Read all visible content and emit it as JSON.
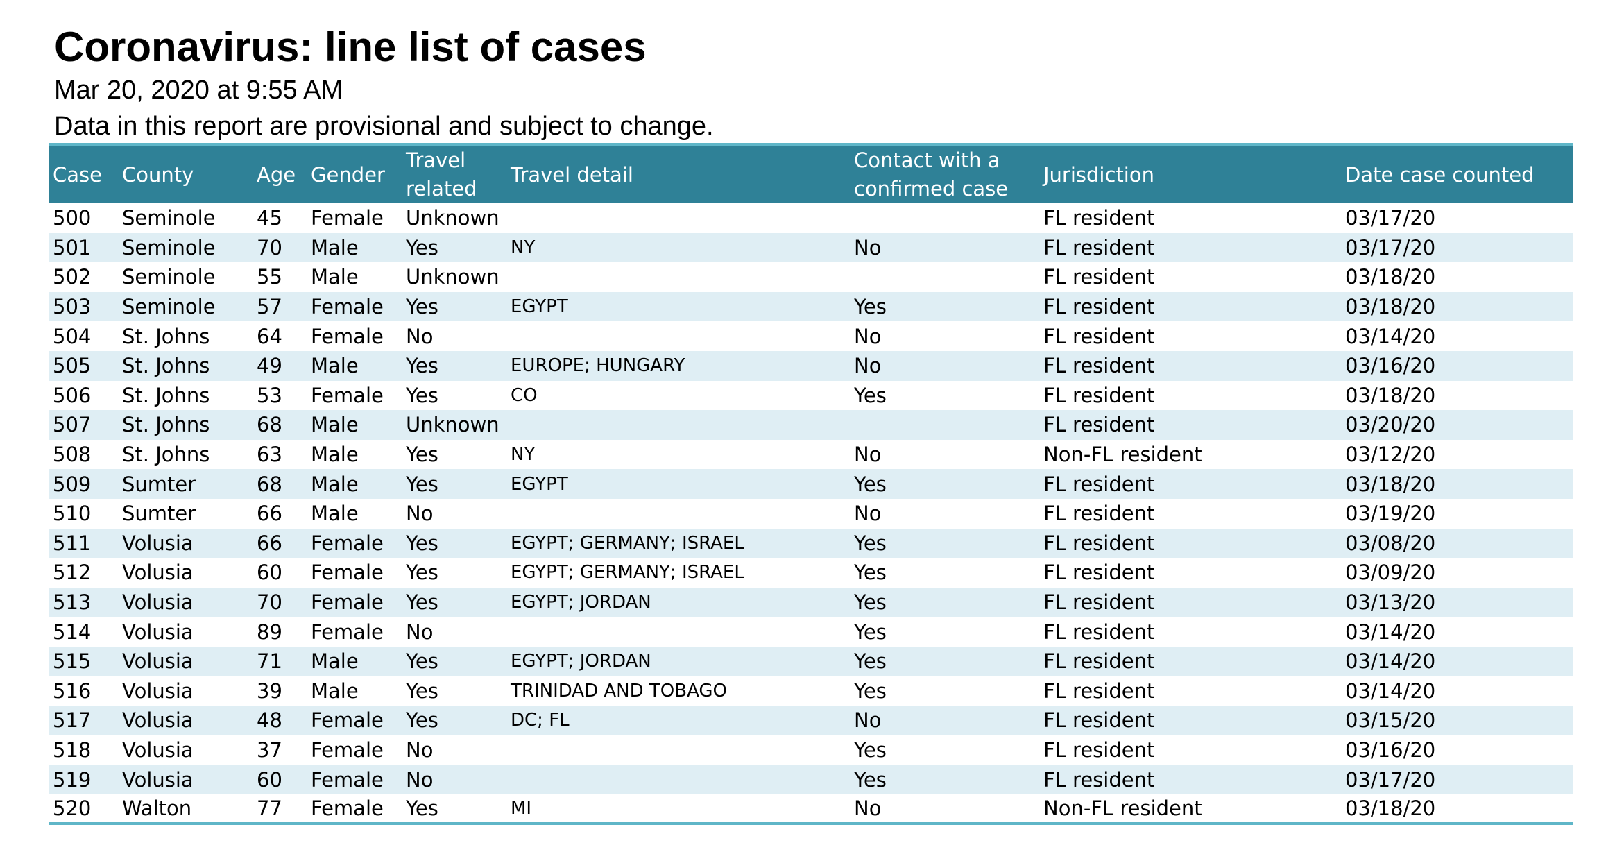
{
  "title": "Coronavirus: line list of cases",
  "timestamp": "Mar 20, 2020 at 9:55 AM",
  "disclaimer": "Data in this report are provisional and subject to change.",
  "table": {
    "headers": {
      "case": "Case",
      "county": "County",
      "age": "Age",
      "gender": "Gender",
      "travel_related_1": "Travel",
      "travel_related_2": "related",
      "travel_detail": "Travel detail",
      "contact_1": "Contact with a",
      "contact_2": "confirmed case",
      "jurisdiction": "Jurisdiction",
      "date_counted": "Date case counted"
    },
    "rows": [
      {
        "case": "500",
        "county": "Seminole",
        "age": "45",
        "gender": "Female",
        "travel_related": "Unknown",
        "travel_detail": "",
        "contact": "",
        "jurisdiction": "FL resident",
        "date": "03/17/20"
      },
      {
        "case": "501",
        "county": "Seminole",
        "age": "70",
        "gender": "Male",
        "travel_related": "Yes",
        "travel_detail": "NY",
        "contact": "No",
        "jurisdiction": "FL resident",
        "date": "03/17/20"
      },
      {
        "case": "502",
        "county": "Seminole",
        "age": "55",
        "gender": "Male",
        "travel_related": "Unknown",
        "travel_detail": "",
        "contact": "",
        "jurisdiction": "FL resident",
        "date": "03/18/20"
      },
      {
        "case": "503",
        "county": "Seminole",
        "age": "57",
        "gender": "Female",
        "travel_related": "Yes",
        "travel_detail": "EGYPT",
        "contact": "Yes",
        "jurisdiction": "FL resident",
        "date": "03/18/20"
      },
      {
        "case": "504",
        "county": "St. Johns",
        "age": "64",
        "gender": "Female",
        "travel_related": "No",
        "travel_detail": "",
        "contact": "No",
        "jurisdiction": "FL resident",
        "date": "03/14/20"
      },
      {
        "case": "505",
        "county": "St. Johns",
        "age": "49",
        "gender": "Male",
        "travel_related": "Yes",
        "travel_detail": "EUROPE; HUNGARY",
        "contact": "No",
        "jurisdiction": "FL resident",
        "date": "03/16/20"
      },
      {
        "case": "506",
        "county": "St. Johns",
        "age": "53",
        "gender": "Female",
        "travel_related": "Yes",
        "travel_detail": "CO",
        "contact": "Yes",
        "jurisdiction": "FL resident",
        "date": "03/18/20"
      },
      {
        "case": "507",
        "county": "St. Johns",
        "age": "68",
        "gender": "Male",
        "travel_related": "Unknown",
        "travel_detail": "",
        "contact": "",
        "jurisdiction": "FL resident",
        "date": "03/20/20"
      },
      {
        "case": "508",
        "county": "St. Johns",
        "age": "63",
        "gender": "Male",
        "travel_related": "Yes",
        "travel_detail": "NY",
        "contact": "No",
        "jurisdiction": "Non-FL resident",
        "date": "03/12/20"
      },
      {
        "case": "509",
        "county": "Sumter",
        "age": "68",
        "gender": "Male",
        "travel_related": "Yes",
        "travel_detail": "EGYPT",
        "contact": "Yes",
        "jurisdiction": "FL resident",
        "date": "03/18/20"
      },
      {
        "case": "510",
        "county": "Sumter",
        "age": "66",
        "gender": "Male",
        "travel_related": "No",
        "travel_detail": "",
        "contact": "No",
        "jurisdiction": "FL resident",
        "date": "03/19/20"
      },
      {
        "case": "511",
        "county": "Volusia",
        "age": "66",
        "gender": "Female",
        "travel_related": "Yes",
        "travel_detail": "EGYPT; GERMANY; ISRAEL",
        "contact": "Yes",
        "jurisdiction": "FL resident",
        "date": "03/08/20"
      },
      {
        "case": "512",
        "county": "Volusia",
        "age": "60",
        "gender": "Female",
        "travel_related": "Yes",
        "travel_detail": "EGYPT; GERMANY; ISRAEL",
        "contact": "Yes",
        "jurisdiction": "FL resident",
        "date": "03/09/20"
      },
      {
        "case": "513",
        "county": "Volusia",
        "age": "70",
        "gender": "Female",
        "travel_related": "Yes",
        "travel_detail": "EGYPT; JORDAN",
        "contact": "Yes",
        "jurisdiction": "FL resident",
        "date": "03/13/20"
      },
      {
        "case": "514",
        "county": "Volusia",
        "age": "89",
        "gender": "Female",
        "travel_related": "No",
        "travel_detail": "",
        "contact": "Yes",
        "jurisdiction": "FL resident",
        "date": "03/14/20"
      },
      {
        "case": "515",
        "county": "Volusia",
        "age": "71",
        "gender": "Male",
        "travel_related": "Yes",
        "travel_detail": "EGYPT; JORDAN",
        "contact": "Yes",
        "jurisdiction": "FL resident",
        "date": "03/14/20"
      },
      {
        "case": "516",
        "county": "Volusia",
        "age": "39",
        "gender": "Male",
        "travel_related": "Yes",
        "travel_detail": "TRINIDAD AND TOBAGO",
        "contact": "Yes",
        "jurisdiction": "FL resident",
        "date": "03/14/20"
      },
      {
        "case": "517",
        "county": "Volusia",
        "age": "48",
        "gender": "Female",
        "travel_related": "Yes",
        "travel_detail": "DC; FL",
        "contact": "No",
        "jurisdiction": "FL resident",
        "date": "03/15/20"
      },
      {
        "case": "518",
        "county": "Volusia",
        "age": "37",
        "gender": "Female",
        "travel_related": "No",
        "travel_detail": "",
        "contact": "Yes",
        "jurisdiction": "FL resident",
        "date": "03/16/20"
      },
      {
        "case": "519",
        "county": "Volusia",
        "age": "60",
        "gender": "Female",
        "travel_related": "No",
        "travel_detail": "",
        "contact": "Yes",
        "jurisdiction": "FL resident",
        "date": "03/17/20"
      },
      {
        "case": "520",
        "county": "Walton",
        "age": "77",
        "gender": "Female",
        "travel_related": "Yes",
        "travel_detail": "MI",
        "contact": "No",
        "jurisdiction": "Non-FL resident",
        "date": "03/18/20"
      }
    ]
  },
  "colors": {
    "header_bg": "#2f8197",
    "accent_line": "#5fb6c8",
    "stripe_bg": "#dfeef4"
  }
}
